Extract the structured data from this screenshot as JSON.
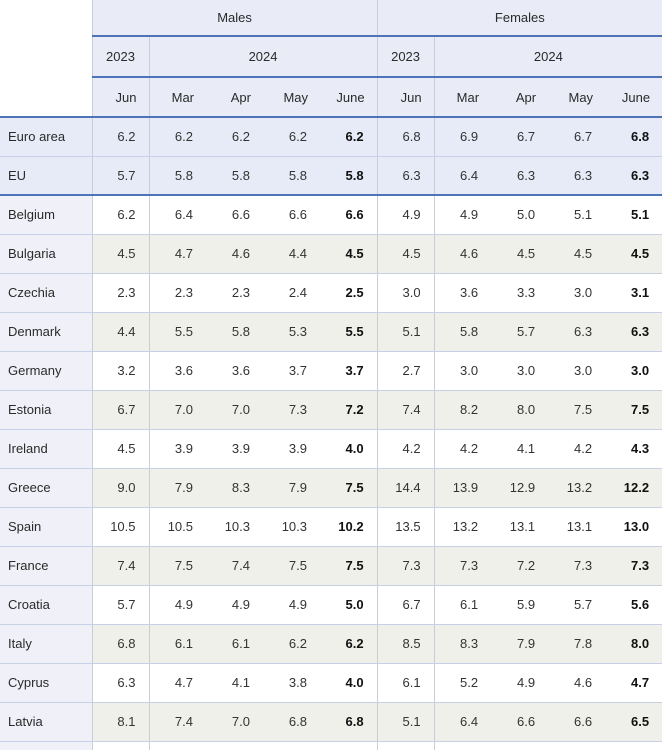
{
  "chart_data": {
    "type": "table",
    "groups": [
      "Males",
      "Females"
    ],
    "years": [
      "2023",
      "2024",
      "2023",
      "2024"
    ],
    "months": [
      "Jun",
      "Mar",
      "Apr",
      "May",
      "June",
      "Jun",
      "Mar",
      "Apr",
      "May",
      "June"
    ],
    "bold_value_columns": [
      4,
      9
    ],
    "rows": [
      {
        "label": "Euro area",
        "aggregate": true,
        "values": [
          "6.2",
          "6.2",
          "6.2",
          "6.2",
          "6.2",
          "6.8",
          "6.9",
          "6.7",
          "6.7",
          "6.8"
        ]
      },
      {
        "label": "EU",
        "aggregate": true,
        "values": [
          "5.7",
          "5.8",
          "5.8",
          "5.8",
          "5.8",
          "6.3",
          "6.4",
          "6.3",
          "6.3",
          "6.3"
        ]
      },
      {
        "label": "Belgium",
        "aggregate": false,
        "values": [
          "6.2",
          "6.4",
          "6.6",
          "6.6",
          "6.6",
          "4.9",
          "4.9",
          "5.0",
          "5.1",
          "5.1"
        ]
      },
      {
        "label": "Bulgaria",
        "aggregate": false,
        "values": [
          "4.5",
          "4.7",
          "4.6",
          "4.4",
          "4.5",
          "4.5",
          "4.6",
          "4.5",
          "4.5",
          "4.5"
        ]
      },
      {
        "label": "Czechia",
        "aggregate": false,
        "values": [
          "2.3",
          "2.3",
          "2.3",
          "2.4",
          "2.5",
          "3.0",
          "3.6",
          "3.3",
          "3.0",
          "3.1"
        ]
      },
      {
        "label": "Denmark",
        "aggregate": false,
        "values": [
          "4.4",
          "5.5",
          "5.8",
          "5.3",
          "5.5",
          "5.1",
          "5.8",
          "5.7",
          "6.3",
          "6.3"
        ]
      },
      {
        "label": "Germany",
        "aggregate": false,
        "values": [
          "3.2",
          "3.6",
          "3.6",
          "3.7",
          "3.7",
          "2.7",
          "3.0",
          "3.0",
          "3.0",
          "3.0"
        ]
      },
      {
        "label": "Estonia",
        "aggregate": false,
        "values": [
          "6.7",
          "7.0",
          "7.0",
          "7.3",
          "7.2",
          "7.4",
          "8.2",
          "8.0",
          "7.5",
          "7.5"
        ]
      },
      {
        "label": "Ireland",
        "aggregate": false,
        "values": [
          "4.5",
          "3.9",
          "3.9",
          "3.9",
          "4.0",
          "4.2",
          "4.2",
          "4.1",
          "4.2",
          "4.3"
        ]
      },
      {
        "label": "Greece",
        "aggregate": false,
        "values": [
          "9.0",
          "7.9",
          "8.3",
          "7.9",
          "7.5",
          "14.4",
          "13.9",
          "12.9",
          "13.2",
          "12.2"
        ]
      },
      {
        "label": "Spain",
        "aggregate": false,
        "values": [
          "10.5",
          "10.5",
          "10.3",
          "10.3",
          "10.2",
          "13.5",
          "13.2",
          "13.1",
          "13.1",
          "13.0"
        ]
      },
      {
        "label": "France",
        "aggregate": false,
        "values": [
          "7.4",
          "7.5",
          "7.4",
          "7.5",
          "7.5",
          "7.3",
          "7.3",
          "7.2",
          "7.3",
          "7.3"
        ]
      },
      {
        "label": "Croatia",
        "aggregate": false,
        "values": [
          "5.7",
          "4.9",
          "4.9",
          "4.9",
          "5.0",
          "6.7",
          "6.1",
          "5.9",
          "5.7",
          "5.6"
        ]
      },
      {
        "label": "Italy",
        "aggregate": false,
        "values": [
          "6.8",
          "6.1",
          "6.1",
          "6.2",
          "6.2",
          "8.5",
          "8.3",
          "7.9",
          "7.8",
          "8.0"
        ]
      },
      {
        "label": "Cyprus",
        "aggregate": false,
        "values": [
          "6.3",
          "4.7",
          "4.1",
          "3.8",
          "4.0",
          "6.1",
          "5.2",
          "4.9",
          "4.6",
          "4.7"
        ]
      },
      {
        "label": "Latvia",
        "aggregate": false,
        "values": [
          "8.1",
          "7.4",
          "7.0",
          "6.8",
          "6.8",
          "5.1",
          "6.4",
          "6.6",
          "6.6",
          "6.5"
        ]
      }
    ]
  },
  "colors": {
    "accent_border": "#4d74b6",
    "header_bg": "#e9ecf7",
    "aggregate_row_bg": "#e7ebf7",
    "label_column_bg": "#f0f1f8",
    "stripe_bg": "#f0f0ea",
    "row_separator": "#c7d1e5",
    "column_separator": "#c9cdd7"
  }
}
